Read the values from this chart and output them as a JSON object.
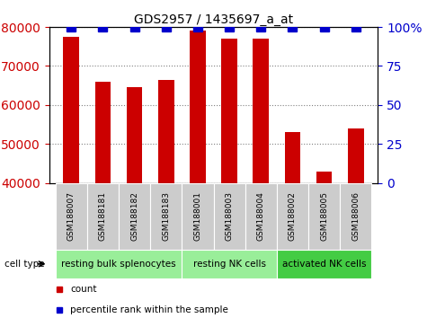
{
  "title": "GDS2957 / 1435697_a_at",
  "samples": [
    "GSM188007",
    "GSM188181",
    "GSM188182",
    "GSM188183",
    "GSM188001",
    "GSM188003",
    "GSM188004",
    "GSM188002",
    "GSM188005",
    "GSM188006"
  ],
  "counts": [
    77500,
    66000,
    64500,
    66500,
    79000,
    77000,
    77000,
    53000,
    43000,
    54000
  ],
  "percentiles": [
    100,
    100,
    100,
    100,
    100,
    100,
    100,
    100,
    100,
    100
  ],
  "ymin": 40000,
  "ymax": 80000,
  "yticks": [
    40000,
    50000,
    60000,
    70000,
    80000
  ],
  "cell_groups": [
    {
      "label": "resting bulk splenocytes",
      "start": 0,
      "end": 4,
      "color": "#99ee99"
    },
    {
      "label": "resting NK cells",
      "start": 4,
      "end": 7,
      "color": "#99ee99"
    },
    {
      "label": "activated NK cells",
      "start": 7,
      "end": 10,
      "color": "#44cc44"
    }
  ],
  "bar_color": "#cc0000",
  "percentile_color": "#0000cc",
  "background_color": "#ffffff",
  "tick_label_color_left": "#cc0000",
  "tick_label_color_right": "#0000cc",
  "sample_bg_color": "#cccccc",
  "cell_type_label": "cell type",
  "legend_count_label": "count",
  "legend_percentile_label": "percentile rank within the sample",
  "bar_width": 0.5,
  "percentile_marker_size": 7
}
